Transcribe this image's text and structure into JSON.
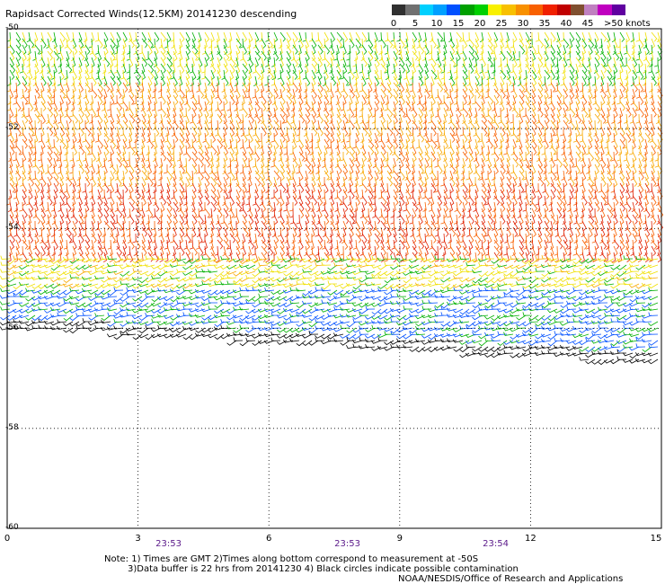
{
  "title": "Rapidsact Corrected Winds(12.5KM) 20141230 descending",
  "colorbar": {
    "colors": [
      "#303030",
      "#707070",
      "#00d0ff",
      "#00a0ff",
      "#0050ff",
      "#00a000",
      "#00d000",
      "#f8f000",
      "#f8c000",
      "#f89000",
      "#f86000",
      "#f02000",
      "#c00000",
      "#805030",
      "#c080c0",
      "#c000c0",
      "#6000a0"
    ],
    "labels": [
      "0",
      "5",
      "10",
      "15",
      "20",
      "25",
      "30",
      "35",
      "40",
      "45",
      ">50 knots"
    ],
    "unit": "knots"
  },
  "axes": {
    "y_labels": [
      "-50",
      "-52",
      "-54",
      "-56",
      "-58",
      "-60"
    ],
    "x_labels": [
      "0",
      "3",
      "6",
      "9",
      "12",
      "15"
    ],
    "times": [
      "23:53",
      "23:53",
      "23:54"
    ]
  },
  "chart_data": {
    "type": "wind-barb-map",
    "title": "Rapidsact Corrected Winds(12.5KM) 20141230 descending",
    "x_range": [
      0,
      15
    ],
    "y_range": [
      -60,
      -50
    ],
    "grid": true,
    "swath_coverage_lat_south_edge": [
      -56.0,
      -56.7
    ],
    "speed_bands": [
      {
        "lat_from": -50,
        "lat_to": -51,
        "speed_knots": 20
      },
      {
        "lat_from": -51,
        "lat_to": -53,
        "speed_knots": 30
      },
      {
        "lat_from": -53,
        "lat_to": -54.5,
        "speed_knots": 35
      },
      {
        "lat_from": -54.5,
        "lat_to": -55.2,
        "speed_knots": 22
      },
      {
        "lat_from": -55.2,
        "lat_to": -56.5,
        "speed_knots": 14
      }
    ],
    "pass_times": [
      "23:53",
      "23:53",
      "23:54"
    ]
  },
  "notes": {
    "line1": "Note: 1) Times are GMT 2)Times along bottom correspond to measurement at -50S",
    "line2": "3)Data buffer is 22 hrs from 20141230 4) Black circles indicate possible contamination",
    "credit": "NOAA/NESDIS/Office of Research and Applications"
  }
}
